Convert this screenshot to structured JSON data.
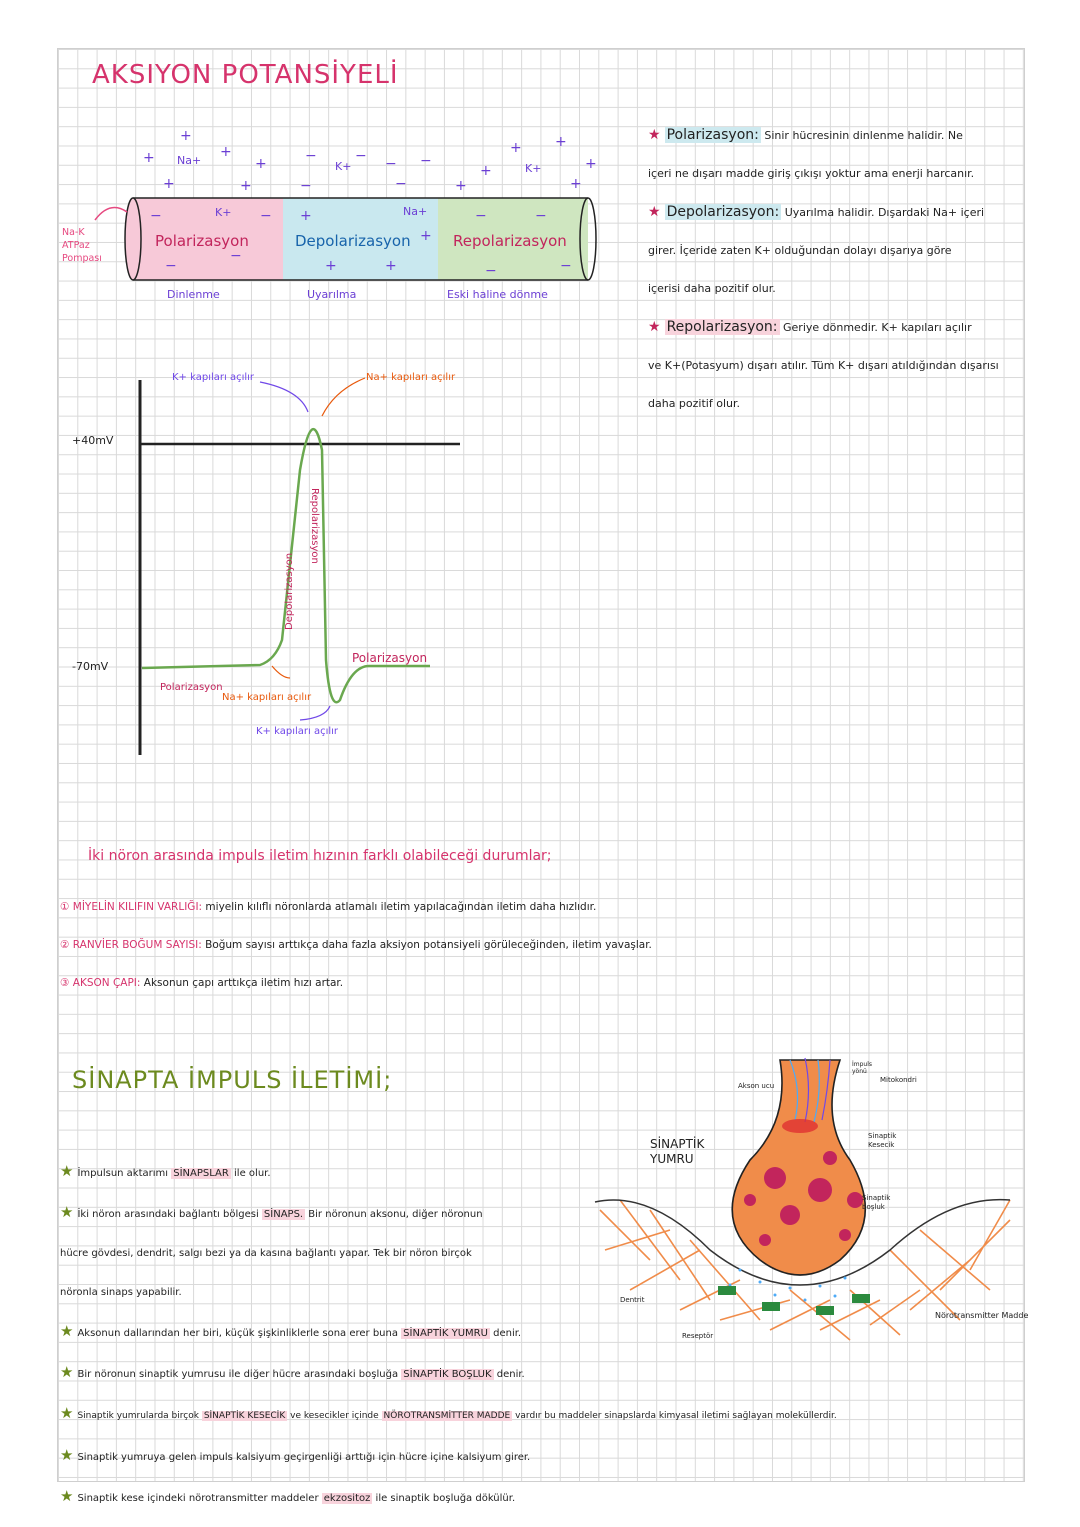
{
  "title": "AKSIYON POTANSİYELİ",
  "axon": {
    "pump_label": [
      "Na-K",
      "ATPaz",
      "Pompası"
    ],
    "segments": [
      "Polarizasyon",
      "Depolarizasyon",
      "Repolarizasyon"
    ],
    "states": [
      "Dinlenme",
      "Uyarılma",
      "Eski haline dönme"
    ],
    "ions": {
      "na": "Na+",
      "k": "K+"
    }
  },
  "definitions": [
    {
      "term": "Polarizasyon:",
      "line1": "Sinir hücresinin dinlenme halidir. Ne",
      "line2": "içeri ne dışarı madde giriş çıkışı yoktur ama enerji harcanır."
    },
    {
      "term": "Depolarizasyon:",
      "line1": "Uyarılma halidir. Dışardaki Na+ içeri",
      "line2": "girer. İçeride zaten K+ olduğundan dolayı dışarıya göre",
      "line3": "içerisi daha pozitif olur."
    },
    {
      "term": "Repolarizasyon:",
      "line1": "Geriye dönmedir. K+ kapıları açılır",
      "line2": "ve K+(Potasyum) dışarı atılır. Tüm K+ dışarı atıldığından dışarısı",
      "line3": "daha pozitif olur."
    }
  ],
  "graph": {
    "y_labels": [
      "+40mV",
      "-70mV"
    ],
    "annotations": {
      "k_open_top": "K+ kapıları açılır",
      "na_open_top": "Na+ kapıları açılır",
      "na_open_bottom": "Na+ kapıları açılır",
      "k_open_bottom": "K+ kapıları açılır",
      "depol": "Depolarizasyon",
      "repol": "Repolarizasyon",
      "pol_left": "Polarizasyon",
      "pol_right": "Polarizasyon"
    }
  },
  "speed": {
    "heading": "İki nöron arasında impuls iletim hızının farklı olabileceği durumlar;",
    "items": [
      {
        "num": "①",
        "term": "MİYELİN KILIFIN VARLIĞI:",
        "text": "miyelin kılıflı nöronlarda atlamalı iletim yapılacağından iletim daha hızlıdır."
      },
      {
        "num": "②",
        "term": "RANVİER BOĞUM SAYISI:",
        "text": "Boğum sayısı arttıkça daha fazla aksiyon potansiyeli görüleceğinden, iletim yavaşlar."
      },
      {
        "num": "③",
        "term": "AKSON ÇAPI:",
        "text": "Aksonun çapı arttıkça iletim hızı artar."
      }
    ]
  },
  "synapse": {
    "title": "SİNAPTA İMPULS İLETİMİ;",
    "bullets": [
      {
        "a": "İmpulsun aktarımı",
        "hl": "SİNAPSLAR",
        "b": "ile olur."
      },
      {
        "a": "İki nöron arasındaki bağlantı bölgesi",
        "hl": "SİNAPS.",
        "b": "Bir nöronun aksonu, diğer nöronun"
      },
      {
        "a": "hücre gövdesi, dendrit, salgı bezi ya da kasına bağlantı yapar. Tek bir nöron birçok",
        "hl": "",
        "b": ""
      },
      {
        "a": "nöronla sinaps yapabilir.",
        "hl": "",
        "b": ""
      },
      {
        "a": "Aksonun dallarından her biri, küçük şişkinliklerle sona erer buna",
        "hl": "SİNAPTİK YUMRU",
        "b": "denir."
      },
      {
        "a": "Bir nöronun sinaptik yumrusu ile diğer hücre arasındaki boşluğa",
        "hl": "SİNAPTİK BOŞLUK",
        "b": "denir."
      },
      {
        "a": "Sinaptik yumrularda birçok",
        "hl": "SİNAPTİK KESECİK",
        "b": "ve kesecikler içinde",
        "hl2": "NÖROTRANSMİTTER MADDE",
        "c": "vardır bu maddeler sinapslarda kimyasal iletimi sağlayan moleküllerdir."
      },
      {
        "a": "Sinaptik yumruya gelen impuls kalsiyum geçirgenliği arttığı için hücre içine kalsiyum girer.",
        "hl": "",
        "b": ""
      },
      {
        "a": "Sinaptik kese içindeki nörotransmitter maddeler",
        "hl": "ekzositoz",
        "b": "ile sinaptik boşluğa dökülür."
      }
    ],
    "diagram_labels": {
      "yumru": [
        "SİNAPTİK",
        "YUMRU"
      ],
      "akson_ucu": "Akson ucu",
      "impuls_yonu": [
        "İmpuls",
        "yönü"
      ],
      "mitokondri": "Mitokondri",
      "kesecik": [
        "Sinaptik",
        "Kesecik"
      ],
      "bosluk": [
        "Sinaptik",
        "boşluk"
      ],
      "dentrit": "Dentrit",
      "reseptor": "Reseptör",
      "norotransmitter": "Nörotransmitter Madde"
    }
  }
}
